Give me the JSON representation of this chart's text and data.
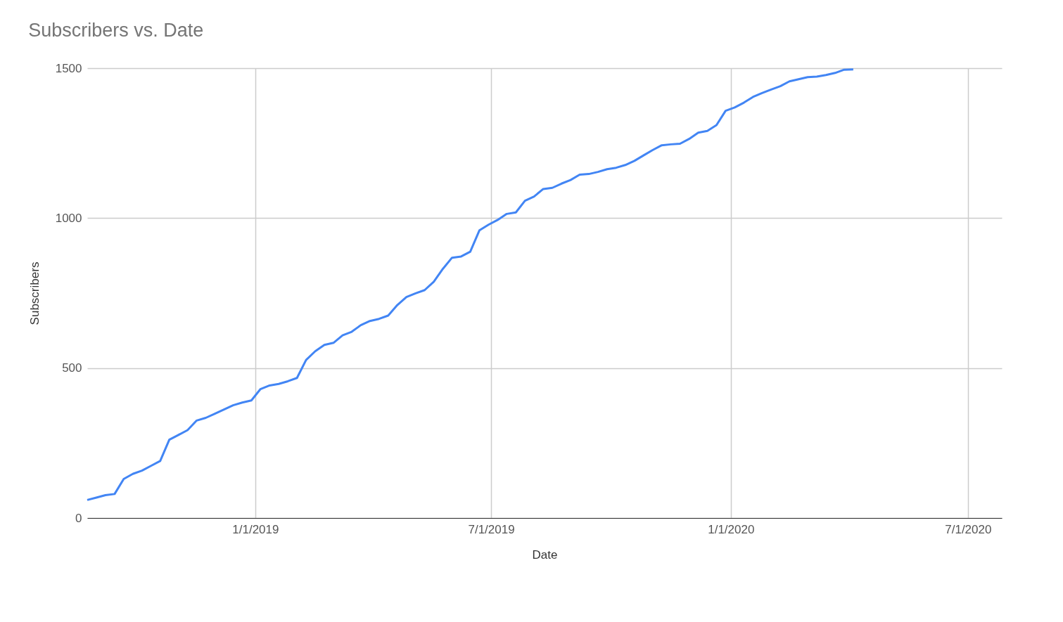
{
  "chart_data": {
    "type": "line",
    "title": "Subscribers vs. Date",
    "xlabel": "Date",
    "ylabel": "Subscribers",
    "x": [
      "2018-08-25",
      "2018-09-01",
      "2018-09-08",
      "2018-09-15",
      "2018-09-22",
      "2018-09-29",
      "2018-10-06",
      "2018-10-13",
      "2018-10-20",
      "2018-10-27",
      "2018-11-03",
      "2018-11-10",
      "2018-11-17",
      "2018-11-24",
      "2018-12-01",
      "2018-12-08",
      "2018-12-15",
      "2018-12-22",
      "2018-12-29",
      "2019-01-05",
      "2019-01-12",
      "2019-01-19",
      "2019-01-26",
      "2019-02-02",
      "2019-02-09",
      "2019-02-16",
      "2019-02-23",
      "2019-03-02",
      "2019-03-09",
      "2019-03-16",
      "2019-03-23",
      "2019-03-30",
      "2019-04-06",
      "2019-04-13",
      "2019-04-20",
      "2019-04-27",
      "2019-05-04",
      "2019-05-11",
      "2019-05-18",
      "2019-05-25",
      "2019-06-01",
      "2019-06-08",
      "2019-06-15",
      "2019-06-22",
      "2019-06-29",
      "2019-07-06",
      "2019-07-13",
      "2019-07-20",
      "2019-07-27",
      "2019-08-03",
      "2019-08-10",
      "2019-08-17",
      "2019-08-24",
      "2019-08-31",
      "2019-09-07",
      "2019-09-14",
      "2019-09-21",
      "2019-09-28",
      "2019-10-05",
      "2019-10-12",
      "2019-10-19",
      "2019-10-26",
      "2019-11-02",
      "2019-11-09",
      "2019-11-16",
      "2019-11-23",
      "2019-11-30",
      "2019-12-07",
      "2019-12-14",
      "2019-12-21",
      "2019-12-28",
      "2020-01-04",
      "2020-01-11",
      "2020-01-18",
      "2020-01-25",
      "2020-02-01",
      "2020-02-08",
      "2020-02-15",
      "2020-02-22",
      "2020-02-29",
      "2020-03-07",
      "2020-03-14",
      "2020-03-21",
      "2020-03-28",
      "2020-04-04"
    ],
    "series": [
      {
        "color": "#4285f4",
        "values": [
          60,
          68,
          76,
          80,
          130,
          147,
          158,
          174,
          190,
          261,
          277,
          293,
          325,
          334,
          348,
          362,
          376,
          385,
          392,
          430,
          442,
          447,
          456,
          467,
          527,
          556,
          577,
          584,
          609,
          621,
          643,
          657,
          664,
          675,
          710,
          737,
          749,
          760,
          788,
          831,
          868,
          872,
          888,
          959,
          978,
          994,
          1014,
          1019,
          1058,
          1072,
          1097,
          1101,
          1115,
          1127,
          1145,
          1147,
          1154,
          1163,
          1168,
          1177,
          1191,
          1209,
          1227,
          1243,
          1246,
          1248,
          1264,
          1285,
          1291,
          1310,
          1358,
          1369,
          1385,
          1404,
          1417,
          1429,
          1440,
          1456,
          1463,
          1470,
          1472,
          1477,
          1484,
          1495,
          1496
        ]
      }
    ],
    "xlim": [
      "2018-08-25",
      "2020-07-27"
    ],
    "xticks": [
      {
        "value": "2019-01-01",
        "label": "1/1/2019"
      },
      {
        "value": "2019-07-01",
        "label": "7/1/2019"
      },
      {
        "value": "2020-01-01",
        "label": "1/1/2020"
      },
      {
        "value": "2020-07-01",
        "label": "7/1/2020"
      }
    ],
    "ylim": [
      0,
      1500
    ],
    "yticks": [
      0,
      500,
      1000,
      1500
    ],
    "grid": true,
    "marker": "none",
    "line_style": "solid"
  }
}
